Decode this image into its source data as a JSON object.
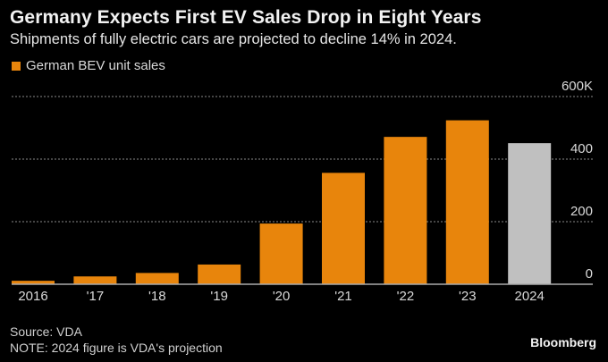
{
  "chart_data": {
    "type": "bar",
    "title": "Germany Expects First EV Sales Drop in Eight Years",
    "subtitle": "Shipments of fully electric cars are projected to decline 14% in 2024.",
    "legend": [
      {
        "label": "German BEV unit sales",
        "color": "#e8850c"
      }
    ],
    "legend_position": "top-left",
    "categories": [
      "2016",
      "'17",
      "'18",
      "'19",
      "'20",
      "'21",
      "'22",
      "'23",
      "2024"
    ],
    "values": [
      11,
      25,
      36,
      63,
      194,
      356,
      471,
      524,
      451
    ],
    "value_unit": "K units",
    "projected": [
      false,
      false,
      false,
      false,
      false,
      false,
      false,
      false,
      true
    ],
    "colors": {
      "actual": "#e8850c",
      "projected": "#c0c0c0",
      "grid": "#8a8a8a",
      "axis": "#aaaaaa",
      "tick_text": "#d9d9d9"
    },
    "xlabel": "",
    "ylabel": "",
    "ylim": [
      0,
      600
    ],
    "yticks": [
      0,
      200,
      400,
      600
    ],
    "ytick_labels": [
      "0",
      "200",
      "400",
      "600K"
    ],
    "yaxis_position": "right",
    "grid": true
  },
  "footer": {
    "source": "Source: VDA",
    "note": "NOTE: 2024 figure is VDA's projection",
    "brand": "Bloomberg"
  }
}
